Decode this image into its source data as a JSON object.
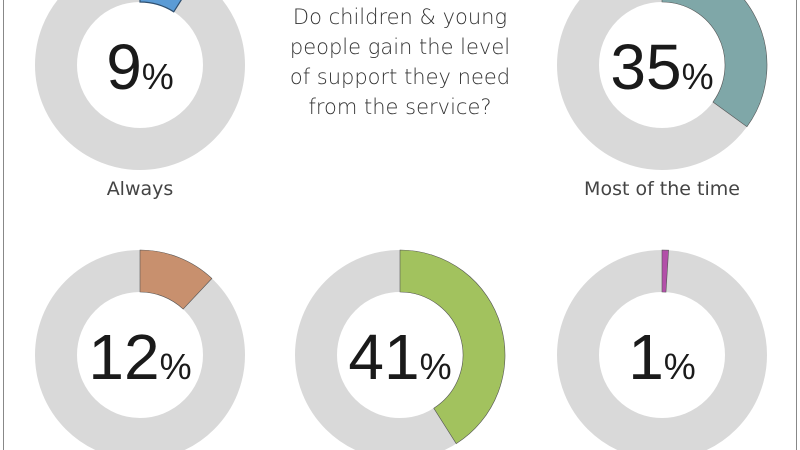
{
  "title": "Do children & young people gain the level of support they need from the service?",
  "chart_data": [
    {
      "type": "pie",
      "variant": "donut",
      "label": "Always",
      "value": 9,
      "unit": "%",
      "color": "#5b9bd5"
    },
    {
      "type": "pie",
      "variant": "donut",
      "label": "Most of the time",
      "value": 35,
      "unit": "%",
      "color": "#7fa7a8"
    },
    {
      "type": "pie",
      "variant": "donut",
      "label": "",
      "value": 12,
      "unit": "%",
      "color": "#c8906e"
    },
    {
      "type": "pie",
      "variant": "donut",
      "label": "",
      "value": 41,
      "unit": "%",
      "color": "#a2c25e"
    },
    {
      "type": "pie",
      "variant": "donut",
      "label": "",
      "value": 1,
      "unit": "%",
      "color": "#b24fa8"
    }
  ],
  "remainder_color": "#d9d9d9"
}
